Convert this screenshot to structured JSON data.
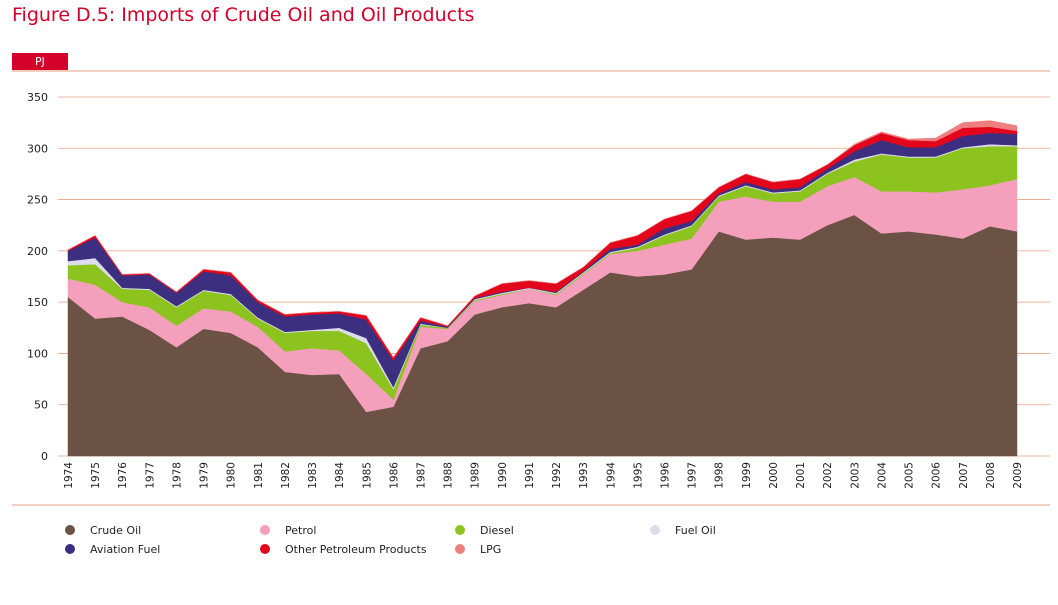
{
  "chart_data": {
    "type": "stacked_area",
    "title": "Figure D.5: Imports of Crude Oil and Oil Products",
    "y_label": "PJ",
    "x": [
      1974,
      1975,
      1976,
      1977,
      1978,
      1979,
      1980,
      1981,
      1982,
      1983,
      1984,
      1985,
      1986,
      1987,
      1988,
      1989,
      1990,
      1991,
      1992,
      1993,
      1994,
      1995,
      1996,
      1997,
      1998,
      1999,
      2000,
      2001,
      2002,
      2003,
      2004,
      2005,
      2006,
      2007,
      2008,
      2009
    ],
    "xlim": [
      1974,
      2009
    ],
    "ylim": [
      0,
      350
    ],
    "yticks": [
      0,
      50,
      100,
      150,
      200,
      250,
      300,
      350
    ],
    "grid": true,
    "series": [
      {
        "name": "Crude Oil",
        "color": "#6b5244",
        "values": [
          155,
          134,
          136,
          123,
          106,
          124,
          120,
          106,
          82,
          79,
          80,
          43,
          48,
          105,
          112,
          138,
          145,
          149,
          145,
          162,
          179,
          175,
          177,
          182,
          219,
          211,
          213,
          211,
          225,
          235,
          217,
          219,
          216,
          212,
          224,
          219
        ]
      },
      {
        "name": "Petrol",
        "color": "#f4a0bd",
        "values": [
          18,
          33,
          14,
          22,
          21,
          20,
          21,
          20,
          20,
          26,
          23,
          37,
          7,
          21,
          12,
          13,
          12,
          14,
          12,
          15,
          18,
          25,
          29,
          30,
          29,
          42,
          35,
          37,
          38,
          37,
          41,
          39,
          41,
          48,
          40,
          51
        ]
      },
      {
        "name": "Diesel",
        "color": "#8dc31e",
        "values": [
          13,
          20,
          13,
          17,
          18,
          17,
          16,
          8,
          18,
          17,
          19,
          30,
          10,
          2,
          1,
          1,
          1,
          0,
          1,
          1,
          1,
          3,
          9,
          12,
          5,
          10,
          8,
          10,
          12,
          15,
          36,
          33,
          34,
          40,
          38,
          32
        ]
      },
      {
        "name": "Fuel Oil",
        "color": "#dcdcec",
        "values": [
          4,
          6,
          1,
          1,
          1,
          1,
          1,
          1,
          1,
          1,
          3,
          5,
          2,
          1,
          0,
          1,
          1,
          1,
          1,
          1,
          1,
          1,
          1,
          1,
          1,
          1,
          1,
          1,
          1,
          2,
          1,
          1,
          1,
          1,
          2,
          1
        ]
      },
      {
        "name": "Aviation Fuel",
        "color": "#3c2f80",
        "values": [
          10,
          20,
          12,
          14,
          13,
          18,
          18,
          15,
          15,
          15,
          14,
          18,
          26,
          3,
          1,
          1,
          1,
          0,
          1,
          1,
          3,
          2,
          6,
          4,
          2,
          3,
          3,
          3,
          4,
          8,
          13,
          9,
          9,
          11,
          11,
          11
        ]
      },
      {
        "name": "Other Petroleum Products",
        "color": "#e3051b",
        "values": [
          1,
          2,
          1,
          1,
          1,
          2,
          3,
          2,
          2,
          2,
          2,
          4,
          3,
          3,
          1,
          2,
          8,
          7,
          8,
          4,
          6,
          9,
          9,
          10,
          6,
          8,
          7,
          8,
          4,
          6,
          7,
          7,
          6,
          8,
          6,
          3
        ]
      },
      {
        "name": "LPG",
        "color": "#ee7f7f",
        "values": [
          0,
          0,
          0,
          0,
          0,
          0,
          0,
          0,
          0,
          0,
          0,
          0,
          0,
          0,
          0,
          0,
          0,
          0,
          0,
          0,
          0,
          0,
          0,
          0,
          0,
          0,
          0,
          0,
          0,
          1,
          1,
          1,
          3,
          5,
          6,
          5
        ]
      }
    ]
  }
}
